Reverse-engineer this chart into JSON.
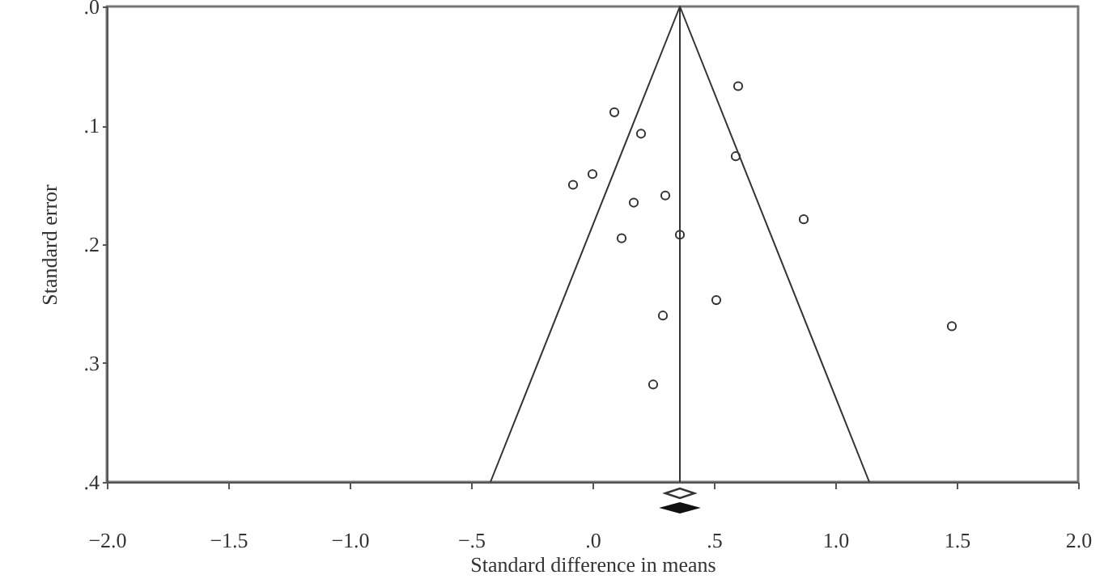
{
  "chart_data": {
    "type": "scatter",
    "xlabel": "Standard difference in means",
    "ylabel": "Standard error",
    "xlim": [
      -2.0,
      2.0
    ],
    "xticks": [
      {
        "value": -2.0,
        "label": "−2.0"
      },
      {
        "value": -1.5,
        "label": "−1.5"
      },
      {
        "value": -1.0,
        "label": "−1.0"
      },
      {
        "value": -0.5,
        "label": "−.5"
      },
      {
        "value": 0,
        "label": ".0"
      },
      {
        "value": 0.5,
        "label": ".5"
      },
      {
        "value": 1.0,
        "label": "1.0"
      },
      {
        "value": 1.5,
        "label": "1.5"
      },
      {
        "value": 2.0,
        "label": "2.0"
      }
    ],
    "ylim": [
      0.4,
      0
    ],
    "yticks": [
      {
        "value": 0,
        "label": ".0"
      },
      {
        "value": 0.1,
        "label": ".1"
      },
      {
        "value": 0.2,
        "label": ".2"
      },
      {
        "value": 0.3,
        "label": ".3"
      },
      {
        "value": 0.4,
        "label": ".4"
      }
    ],
    "grid": false,
    "series": [
      {
        "type": "scatter",
        "color": "#333333",
        "marker": "circle",
        "x": [
          0.6,
          0.09,
          0.2,
          0.59,
          0.0,
          -0.08,
          0.3,
          0.17,
          0.12,
          0.36,
          0.87,
          0.51,
          0.29,
          0.25,
          1.48
        ],
        "values": [
          0.067,
          0.089,
          0.107,
          0.126,
          0.141,
          0.15,
          0.159,
          0.165,
          0.195,
          0.192,
          0.179,
          0.247,
          0.26,
          0.318,
          0.269
        ]
      },
      {
        "type": "line",
        "color": "#333333",
        "line_style": "solid",
        "x": [
          -0.42,
          0.36,
          1.14
        ],
        "values": [
          0.4,
          0,
          0.4
        ]
      }
    ],
    "ref_lines": [
      {
        "axis": "x",
        "value": 0.36,
        "color": "#333333"
      }
    ]
  }
}
